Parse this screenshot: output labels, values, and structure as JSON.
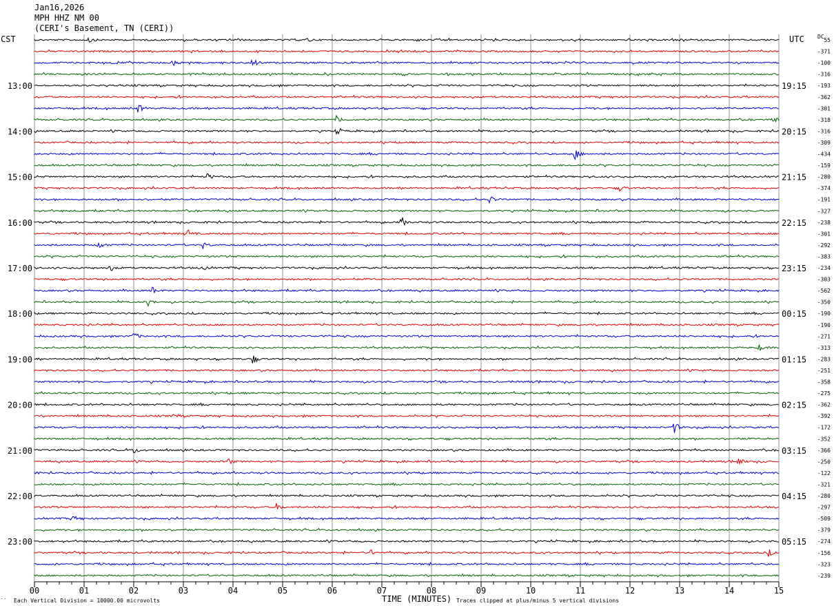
{
  "header": {
    "date": "Jan16,2026",
    "station": "MPH HHZ NM 00",
    "location": "(CERI's Basement, TN (CERI))"
  },
  "left_tz": "CST",
  "right_tz": "UTC",
  "dc_label": "DC",
  "footer": {
    "scale": "Each Vertical Division = 10000.00 microvolts",
    "xlabel": "TIME (MINUTES)",
    "clip": "Traces clipped at plus/minus 5 vertical divisions",
    "mark": "′′"
  },
  "colors": {
    "black": "#000000",
    "red": "#e00000",
    "blue": "#0000d0",
    "green": "#006400"
  },
  "chart_data": {
    "type": "line",
    "title": "Jan16,2026 MPH HHZ NM 00 (CERI's Basement, TN (CERI))",
    "xlabel": "TIME (MINUTES)",
    "xlim": [
      0,
      15
    ],
    "x_ticks": [
      "00",
      "01",
      "02",
      "03",
      "04",
      "05",
      "06",
      "07",
      "08",
      "09",
      "10",
      "11",
      "12",
      "13",
      "14",
      "15"
    ],
    "trace_color_cycle": [
      "black",
      "red",
      "blue",
      "green"
    ],
    "left_hour_labels": [
      {
        "row": 4,
        "text": "13:00"
      },
      {
        "row": 8,
        "text": "14:00"
      },
      {
        "row": 12,
        "text": "15:00"
      },
      {
        "row": 16,
        "text": "16:00"
      },
      {
        "row": 20,
        "text": "17:00"
      },
      {
        "row": 24,
        "text": "18:00"
      },
      {
        "row": 28,
        "text": "19:00"
      },
      {
        "row": 32,
        "text": "20:00"
      },
      {
        "row": 36,
        "text": "21:00"
      },
      {
        "row": 40,
        "text": "22:00"
      },
      {
        "row": 44,
        "text": "23:00"
      }
    ],
    "right_hour_labels": [
      {
        "row": 4,
        "text": "19:15"
      },
      {
        "row": 8,
        "text": "20:15"
      },
      {
        "row": 12,
        "text": "21:15"
      },
      {
        "row": 16,
        "text": "22:15"
      },
      {
        "row": 20,
        "text": "23:15"
      },
      {
        "row": 24,
        "text": "00:15"
      },
      {
        "row": 28,
        "text": "01:15"
      },
      {
        "row": 32,
        "text": "02:15"
      },
      {
        "row": 36,
        "text": "03:15"
      },
      {
        "row": 40,
        "text": "04:15"
      },
      {
        "row": 44,
        "text": "05:15"
      }
    ],
    "dc_offsets": [
      "55",
      "-371",
      "-100",
      "-316",
      "-193",
      "-362",
      "-301",
      "-318",
      "-316",
      "-309",
      "-434",
      "-159",
      "-280",
      "-374",
      "-191",
      "-327",
      "-238",
      "-301",
      "-292",
      "-383",
      "-234",
      "-303",
      "-562",
      "-350",
      "-190",
      "-190",
      "-271",
      "-313",
      "-283",
      "-251",
      "-358",
      "-275",
      "-362",
      "-392",
      "-172",
      "-352",
      "-366",
      "-250",
      "-122",
      "-321",
      "-280",
      "-297",
      "-509",
      "-379",
      "-274",
      "-156",
      "-323",
      "-239"
    ],
    "events": [
      {
        "row": 0,
        "minute": 1.1,
        "amp": 2.5
      },
      {
        "row": 0,
        "minute": 5.5,
        "amp": 2
      },
      {
        "row": 2,
        "minute": 2.8,
        "amp": 4
      },
      {
        "row": 2,
        "minute": 4.4,
        "amp": 5
      },
      {
        "row": 2,
        "minute": 15.0,
        "amp": 5
      },
      {
        "row": 6,
        "minute": 2.1,
        "amp": 4
      },
      {
        "row": 7,
        "minute": 6.1,
        "amp": 3
      },
      {
        "row": 7,
        "minute": 14.9,
        "amp": 3
      },
      {
        "row": 8,
        "minute": 6.1,
        "amp": 3
      },
      {
        "row": 10,
        "minute": 10.9,
        "amp": 5
      },
      {
        "row": 12,
        "minute": 3.5,
        "amp": 2.5
      },
      {
        "row": 13,
        "minute": 11.8,
        "amp": 2.5
      },
      {
        "row": 14,
        "minute": 9.2,
        "amp": 3
      },
      {
        "row": 16,
        "minute": 7.4,
        "amp": 4
      },
      {
        "row": 17,
        "minute": 3.1,
        "amp": 3
      },
      {
        "row": 18,
        "minute": 1.3,
        "amp": 4
      },
      {
        "row": 18,
        "minute": 3.4,
        "amp": 3
      },
      {
        "row": 20,
        "minute": 1.5,
        "amp": 3
      },
      {
        "row": 20,
        "minute": 3.4,
        "amp": 2
      },
      {
        "row": 22,
        "minute": 2.4,
        "amp": 3
      },
      {
        "row": 23,
        "minute": 2.3,
        "amp": 3
      },
      {
        "row": 26,
        "minute": 2.0,
        "amp": 4
      },
      {
        "row": 27,
        "minute": 14.6,
        "amp": 3
      },
      {
        "row": 28,
        "minute": 4.4,
        "amp": 4
      },
      {
        "row": 33,
        "minute": 2.8,
        "amp": 2
      },
      {
        "row": 34,
        "minute": 12.9,
        "amp": 5
      },
      {
        "row": 36,
        "minute": 2.0,
        "amp": 3
      },
      {
        "row": 37,
        "minute": 3.9,
        "amp": 3
      },
      {
        "row": 37,
        "minute": 14.2,
        "amp": 3
      },
      {
        "row": 41,
        "minute": 4.9,
        "amp": 3
      },
      {
        "row": 42,
        "minute": 0.8,
        "amp": 2
      },
      {
        "row": 45,
        "minute": 6.8,
        "amp": 2
      },
      {
        "row": 45,
        "minute": 14.8,
        "amp": 3
      }
    ]
  }
}
